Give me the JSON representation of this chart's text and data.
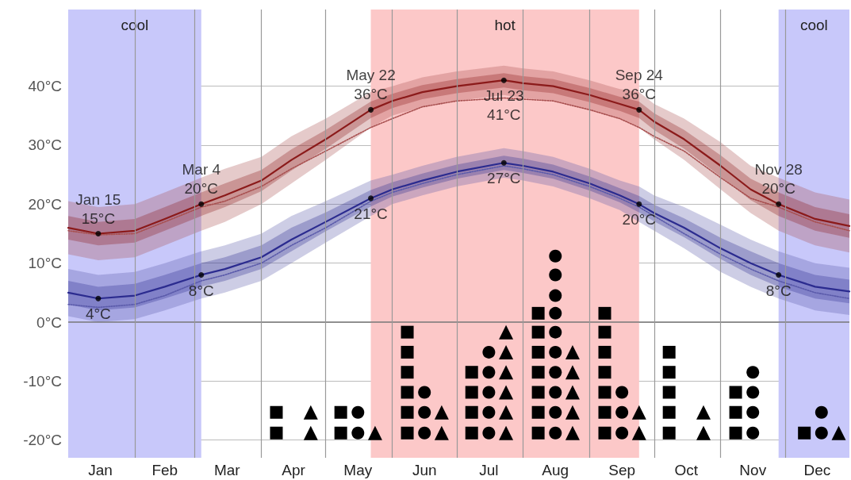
{
  "chart_data": {
    "type": "line",
    "x": [
      "--01-01",
      "--01-15",
      "--02-01",
      "--02-15",
      "--03-04",
      "--03-15",
      "--04-01",
      "--04-15",
      "--05-01",
      "--05-22",
      "--06-01",
      "--06-15",
      "--07-01",
      "--07-23",
      "--08-01",
      "--08-15",
      "--09-01",
      "--09-15",
      "--09-24",
      "--10-01",
      "--10-15",
      "--11-01",
      "--11-15",
      "--11-28",
      "--12-15",
      "--12-31"
    ],
    "xlim": [
      "--01-01",
      "--12-31"
    ],
    "xticks": [
      {
        "value": "--01-16",
        "label": "Jan"
      },
      {
        "value": "--02-15",
        "label": "Feb"
      },
      {
        "value": "--03-16",
        "label": "Mar"
      },
      {
        "value": "--04-16",
        "label": "Apr"
      },
      {
        "value": "--05-16",
        "label": "May"
      },
      {
        "value": "--06-16",
        "label": "Jun"
      },
      {
        "value": "--07-16",
        "label": "Jul"
      },
      {
        "value": "--08-16",
        "label": "Aug"
      },
      {
        "value": "--09-16",
        "label": "Sep"
      },
      {
        "value": "--10-16",
        "label": "Oct"
      },
      {
        "value": "--11-16",
        "label": "Nov"
      },
      {
        "value": "--12-16",
        "label": "Dec"
      },
      {
        "value": "--02-01",
        "label": null
      },
      {
        "value": "--03-01",
        "label": null
      },
      {
        "value": "--04-01",
        "label": null
      },
      {
        "value": "--05-01",
        "label": null
      },
      {
        "value": "--06-01",
        "label": null
      },
      {
        "value": "--07-01",
        "label": null
      },
      {
        "value": "--08-01",
        "label": null
      },
      {
        "value": "--09-01",
        "label": null
      },
      {
        "value": "--10-01",
        "label": null
      },
      {
        "value": "--11-01",
        "label": null
      },
      {
        "value": "--12-01",
        "label": null
      }
    ],
    "ylim": [
      -23,
      53
    ],
    "yticks": [
      {
        "value": -20,
        "label": "-20°C"
      },
      {
        "value": -10,
        "label": "-10°C"
      },
      {
        "value": 0,
        "label": "0°C"
      },
      {
        "value": 10,
        "label": "10°C"
      },
      {
        "value": 20,
        "label": "20°C"
      },
      {
        "value": 30,
        "label": "30°C"
      },
      {
        "value": 40,
        "label": "40°C"
      }
    ],
    "grid": true,
    "series": [
      {
        "color": "#a85050",
        "line_style": "dotted",
        "values": [
          15.5,
          14.8,
          15,
          17,
          19.5,
          20.5,
          23,
          26,
          29,
          33,
          34.5,
          36.5,
          37.5,
          38,
          37.8,
          37.5,
          36,
          34.5,
          33,
          31.5,
          29,
          24.5,
          21,
          19.5,
          17,
          15.5
        ],
        "lower": [
          11.5,
          10.5,
          11,
          13,
          15.5,
          17,
          20,
          23.5,
          27.5,
          33,
          35,
          36.5,
          37.5,
          38.5,
          38,
          37.5,
          36,
          34.5,
          33,
          31,
          27.5,
          22.5,
          18.5,
          15.5,
          13,
          11.8
        ],
        "upper": [
          20.5,
          19.5,
          20,
          22,
          24.5,
          26,
          28,
          31.5,
          34.5,
          39,
          40,
          41.5,
          42.5,
          43.5,
          43,
          42.5,
          41,
          39.5,
          39,
          37,
          34.5,
          30.5,
          26.5,
          24.5,
          22,
          20.8
        ]
      },
      {
        "color": "#8b1a1a",
        "line_style": "solid",
        "values": [
          16,
          15,
          15.5,
          17.5,
          20,
          21.5,
          24,
          27.5,
          31,
          36,
          37.5,
          39,
          40,
          41,
          40.5,
          40,
          38.5,
          37,
          36,
          34,
          31,
          26.5,
          22.5,
          20,
          17.5,
          16.3
        ],
        "lower": [
          14,
          13,
          13.5,
          15.5,
          18,
          19.5,
          22.2,
          25.7,
          29.4,
          34.6,
          36.3,
          37.8,
          38.8,
          39.8,
          39.3,
          38.8,
          37.3,
          35.8,
          34.6,
          32.6,
          29.4,
          24.7,
          20.7,
          18,
          15.5,
          14.3
        ],
        "upper": [
          18,
          17,
          17.5,
          19.5,
          22,
          23.5,
          25.8,
          29.3,
          32.6,
          37.4,
          38.7,
          40.2,
          41.2,
          42.2,
          41.7,
          41.2,
          39.7,
          38.2,
          37.4,
          35.4,
          32.6,
          28.3,
          24.3,
          22,
          19.5,
          18.3
        ]
      },
      {
        "color": "#5a5aaa",
        "line_style": "dotted",
        "values": [
          3,
          2.5,
          3,
          4.5,
          7,
          8,
          10,
          13,
          16,
          20.5,
          22,
          23.5,
          25,
          26.5,
          26,
          25,
          23,
          21,
          19.5,
          18,
          15,
          11.5,
          9,
          7,
          5,
          4
        ],
        "lower": [
          1,
          0,
          0.5,
          2,
          4,
          5,
          7,
          10,
          13.5,
          18,
          20,
          21.5,
          23,
          24.5,
          24,
          23,
          21,
          19,
          17,
          15.5,
          12.5,
          8.5,
          6,
          4,
          2,
          1.2
        ],
        "upper": [
          9,
          8,
          8.5,
          10,
          12,
          13,
          15,
          18,
          20.5,
          24,
          25,
          26.5,
          28,
          29.5,
          29,
          28,
          26,
          24,
          23,
          21.5,
          19.5,
          16.5,
          14,
          12,
          10,
          9.2
        ]
      },
      {
        "color": "#2b2b8f",
        "line_style": "solid",
        "values": [
          5,
          4,
          4.5,
          6,
          8,
          9,
          11,
          14,
          17,
          21,
          22.5,
          24,
          25.5,
          27,
          26.5,
          25.5,
          23.5,
          21.5,
          20,
          18.5,
          16,
          12.5,
          10,
          8,
          6,
          5.2
        ],
        "lower": [
          3,
          2,
          2.5,
          4,
          6,
          7,
          9,
          12,
          15.4,
          19.6,
          21.3,
          22.8,
          24.3,
          25.8,
          25.3,
          24.3,
          22.3,
          20.3,
          18.6,
          17.1,
          14.4,
          10.7,
          8,
          6,
          4,
          3.2
        ],
        "upper": [
          7,
          6,
          6.5,
          8,
          10,
          11,
          13,
          16,
          18.6,
          22.4,
          23.7,
          25.2,
          26.7,
          28.2,
          27.7,
          26.7,
          24.7,
          22.7,
          21.4,
          19.9,
          17.6,
          14.3,
          12,
          10,
          8,
          7.2
        ]
      },
      {
        "type": "scatter",
        "color": "#000000",
        "marker": "square",
        "x": [
          "--04-08",
          "--04-08",
          "--05-08",
          "--05-08",
          "--06-08",
          "--06-08",
          "--06-08",
          "--06-08",
          "--06-08",
          "--06-08",
          "--07-08",
          "--07-08",
          "--07-08",
          "--07-08",
          "--08-08",
          "--08-08",
          "--08-08",
          "--08-08",
          "--08-08",
          "--08-08",
          "--08-08",
          "--09-08",
          "--09-08",
          "--09-08",
          "--09-08",
          "--09-08",
          "--09-08",
          "--09-08",
          "--10-08",
          "--10-08",
          "--10-08",
          "--10-08",
          "--10-08",
          "--11-08",
          "--11-08",
          "--11-08",
          "--12-10"
        ],
        "values": [
          -18.8,
          -15.3,
          -18.8,
          -15.3,
          -18.8,
          -15.3,
          -11.9,
          -8.5,
          -5.1,
          -1.7,
          -18.8,
          -15.3,
          -11.9,
          -8.5,
          -18.8,
          -15.3,
          -11.9,
          -8.5,
          -5.1,
          -1.7,
          1.5,
          -18.8,
          -15.3,
          -11.9,
          -8.5,
          -5.1,
          -1.7,
          1.5,
          -18.8,
          -15.3,
          -11.9,
          -8.5,
          -5.1,
          -18.8,
          -15.3,
          -11.9,
          -18.8
        ]
      },
      {
        "type": "scatter",
        "color": "#000000",
        "marker": "circle",
        "x": [
          "--05-16",
          "--05-16",
          "--06-16",
          "--06-16",
          "--06-16",
          "--07-16",
          "--07-16",
          "--07-16",
          "--07-16",
          "--07-16",
          "--08-16",
          "--08-16",
          "--08-16",
          "--08-16",
          "--08-16",
          "--08-16",
          "--08-16",
          "--08-16",
          "--08-16",
          "--08-16",
          "--09-16",
          "--09-16",
          "--09-16",
          "--11-16",
          "--11-16",
          "--11-16",
          "--11-16",
          "--12-18",
          "--12-18"
        ],
        "values": [
          -18.8,
          -15.3,
          -18.8,
          -15.3,
          -11.9,
          -18.8,
          -15.3,
          -11.9,
          -8.5,
          -5.1,
          -18.8,
          -15.3,
          -11.9,
          -8.5,
          -5.1,
          -1.7,
          1.5,
          4.5,
          8,
          11.2,
          -18.8,
          -15.3,
          -11.9,
          -18.8,
          -15.3,
          -11.9,
          -8.5,
          -18.8,
          -15.3
        ]
      },
      {
        "type": "scatter",
        "color": "#000000",
        "marker": "triangle",
        "x": [
          "--04-24",
          "--04-24",
          "--05-24",
          "--06-24",
          "--06-24",
          "--07-24",
          "--07-24",
          "--07-24",
          "--07-24",
          "--07-24",
          "--07-24",
          "--08-24",
          "--08-24",
          "--08-24",
          "--08-24",
          "--08-24",
          "--09-24",
          "--09-24",
          "--10-24",
          "--10-24",
          "--12-26"
        ],
        "values": [
          -18.8,
          -15.3,
          -18.8,
          -18.8,
          -15.3,
          -18.8,
          -15.3,
          -11.9,
          -8.5,
          -5.1,
          -1.7,
          -18.8,
          -15.3,
          -11.9,
          -8.5,
          -5.1,
          -18.8,
          -15.3,
          -18.8,
          -15.3,
          -18.8
        ]
      }
    ],
    "bands": [
      {
        "axis": "x",
        "from": "--01-01",
        "to": "--03-04",
        "label": "cool",
        "color": "#c8c8fa"
      },
      {
        "axis": "x",
        "from": "--05-22",
        "to": "--09-24",
        "label": "hot",
        "color": "#fcc8c8"
      },
      {
        "axis": "x",
        "from": "--11-28",
        "to": "--12-31",
        "label": "cool",
        "color": "#c8c8fa"
      }
    ],
    "ref_lines": [
      {
        "axis": "y",
        "value": 0,
        "color": "#777777"
      }
    ],
    "annotations": [
      {
        "text": "Jan 15\n15°C",
        "x": "--01-15",
        "y": 15
      },
      {
        "text": "Mar 4\n20°C",
        "x": "--03-04",
        "y": 20
      },
      {
        "text": "May 22\n36°C",
        "x": "--05-22",
        "y": 36
      },
      {
        "text": "Jul 23\n41°C",
        "x": "--07-23",
        "y": 41
      },
      {
        "text": "Sep 24\n36°C",
        "x": "--09-24",
        "y": 36
      },
      {
        "text": "Nov 28\n20°C",
        "x": "--11-28",
        "y": 20
      },
      {
        "text": "4°C",
        "x": "--01-15",
        "y": 4
      },
      {
        "text": "8°C",
        "x": "--03-04",
        "y": 8
      },
      {
        "text": "21°C",
        "x": "--05-22",
        "y": 21
      },
      {
        "text": "27°C",
        "x": "--07-23",
        "y": 27
      },
      {
        "text": "20°C",
        "x": "--09-24",
        "y": 20
      },
      {
        "text": "8°C",
        "x": "--11-28",
        "y": 8
      }
    ]
  }
}
